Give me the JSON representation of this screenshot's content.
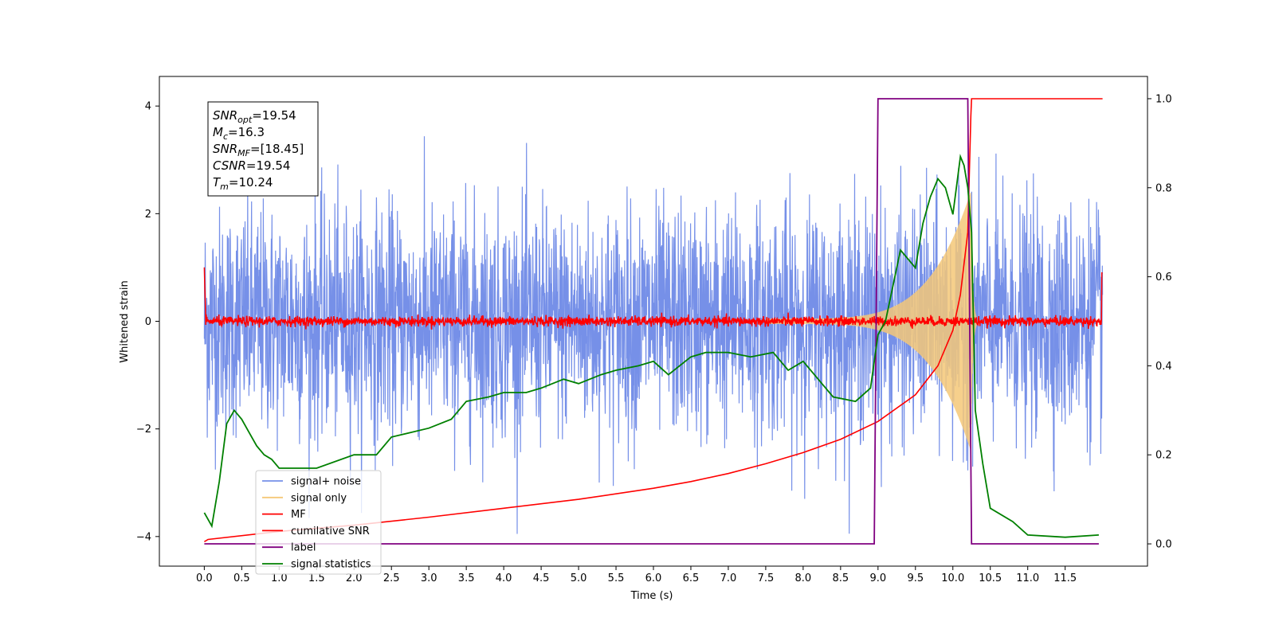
{
  "chart_data": {
    "type": "line",
    "xlabel": "Time (s)",
    "ylabel": "Whitened strain",
    "xlim": [
      -0.6,
      12.6
    ],
    "ylim": [
      -4.55,
      4.55
    ],
    "y2lim": [
      -0.05,
      1.05
    ],
    "x_ticks": [
      0.0,
      0.5,
      1.0,
      1.5,
      2.0,
      2.5,
      3.0,
      3.5,
      4.0,
      4.5,
      5.0,
      5.5,
      6.0,
      6.5,
      7.0,
      7.5,
      8.0,
      8.5,
      9.0,
      9.5,
      10.0,
      10.5,
      11.0,
      11.5
    ],
    "x_tick_labels": [
      "0.0",
      "0.5",
      "1.0",
      "1.5",
      "2.0",
      "2.5",
      "3.0",
      "3.5",
      "4.0",
      "4.5",
      "5.0",
      "5.5",
      "6.0",
      "6.5",
      "7.0",
      "7.5",
      "8.0",
      "8.5",
      "9.0",
      "9.5",
      "10.0",
      "10.5",
      "11.0",
      "11.5"
    ],
    "y_ticks": [
      -4,
      -2,
      0,
      2,
      4
    ],
    "y_tick_labels": [
      "−4",
      "−2",
      "0",
      "2",
      "4"
    ],
    "y2_ticks": [
      0.0,
      0.2,
      0.4,
      0.6,
      0.8,
      1.0
    ],
    "y2_tick_labels": [
      "0.0",
      "0.2",
      "0.4",
      "0.6",
      "0.8",
      "1.0"
    ],
    "grid": false,
    "legend_position": "lower-left",
    "colors": {
      "signal_noise": "#7690e8",
      "signal_only": "#f5c878",
      "mf": "#ff0000",
      "cumulative_snr": "#ff0000",
      "label": "#800080",
      "signal_statistics": "#008000"
    },
    "annotation": {
      "lines": [
        {
          "sym": "SNR",
          "sub": "opt",
          "value": "=19.54"
        },
        {
          "sym": "M",
          "sub": "c",
          "value": "=16.3"
        },
        {
          "sym": "SNR",
          "sub": "MF",
          "value": "=[18.45]"
        },
        {
          "sym": "CSNR",
          "sub": "",
          "value": "=19.54"
        },
        {
          "sym": "T",
          "sub": "m",
          "value": "=10.24"
        }
      ]
    },
    "series": [
      {
        "name": "signal+ noise",
        "axis": "left",
        "description_type": "noise",
        "x_range": [
          0.0,
          12.0
        ],
        "envelope_std": 1.0
      },
      {
        "name": "signal only",
        "axis": "left",
        "description_type": "chirp",
        "merger_time": 10.24,
        "peak_amplitude": 2.4
      },
      {
        "name": "MF",
        "axis": "left",
        "description_type": "noise",
        "x_range": [
          0.0,
          12.0
        ],
        "envelope_std": 0.05
      },
      {
        "name": "cumilative SNR",
        "axis": "right",
        "x": [
          0.0,
          0.05,
          1.0,
          2.0,
          3.0,
          4.0,
          5.0,
          6.0,
          6.5,
          7.0,
          7.5,
          8.0,
          8.5,
          9.0,
          9.5,
          9.8,
          10.0,
          10.1,
          10.2,
          10.24,
          10.25,
          12.0
        ],
        "values": [
          0.005,
          0.01,
          0.028,
          0.042,
          0.06,
          0.08,
          0.1,
          0.125,
          0.14,
          0.158,
          0.18,
          0.205,
          0.235,
          0.275,
          0.335,
          0.4,
          0.48,
          0.56,
          0.7,
          0.96,
          1.0,
          1.0
        ]
      },
      {
        "name": "label",
        "axis": "right",
        "x": [
          0.0,
          8.95,
          9.0,
          10.2,
          10.25,
          11.95
        ],
        "values": [
          0.0,
          0.0,
          1.0,
          1.0,
          0.0,
          0.0
        ]
      },
      {
        "name": "signal statistics",
        "axis": "right",
        "x": [
          0.0,
          0.1,
          0.2,
          0.3,
          0.4,
          0.5,
          0.6,
          0.7,
          0.8,
          0.9,
          1.0,
          1.5,
          2.0,
          2.3,
          2.5,
          3.0,
          3.3,
          3.5,
          3.8,
          4.0,
          4.3,
          4.5,
          4.8,
          5.0,
          5.3,
          5.5,
          5.8,
          6.0,
          6.2,
          6.5,
          6.7,
          7.0,
          7.3,
          7.6,
          7.8,
          8.0,
          8.2,
          8.4,
          8.7,
          8.9,
          9.0,
          9.1,
          9.2,
          9.3,
          9.5,
          9.6,
          9.7,
          9.8,
          9.9,
          10.0,
          10.1,
          10.15,
          10.2,
          10.25,
          10.3,
          10.4,
          10.5,
          10.8,
          11.0,
          11.5,
          11.95
        ],
        "values": [
          0.07,
          0.04,
          0.14,
          0.27,
          0.3,
          0.28,
          0.25,
          0.22,
          0.2,
          0.19,
          0.17,
          0.17,
          0.2,
          0.2,
          0.24,
          0.26,
          0.28,
          0.32,
          0.33,
          0.34,
          0.34,
          0.35,
          0.37,
          0.36,
          0.38,
          0.39,
          0.4,
          0.41,
          0.38,
          0.42,
          0.43,
          0.43,
          0.42,
          0.43,
          0.39,
          0.41,
          0.37,
          0.33,
          0.32,
          0.35,
          0.47,
          0.5,
          0.58,
          0.66,
          0.62,
          0.72,
          0.78,
          0.82,
          0.8,
          0.74,
          0.87,
          0.85,
          0.8,
          0.7,
          0.3,
          0.18,
          0.08,
          0.05,
          0.02,
          0.015,
          0.02
        ]
      }
    ]
  }
}
